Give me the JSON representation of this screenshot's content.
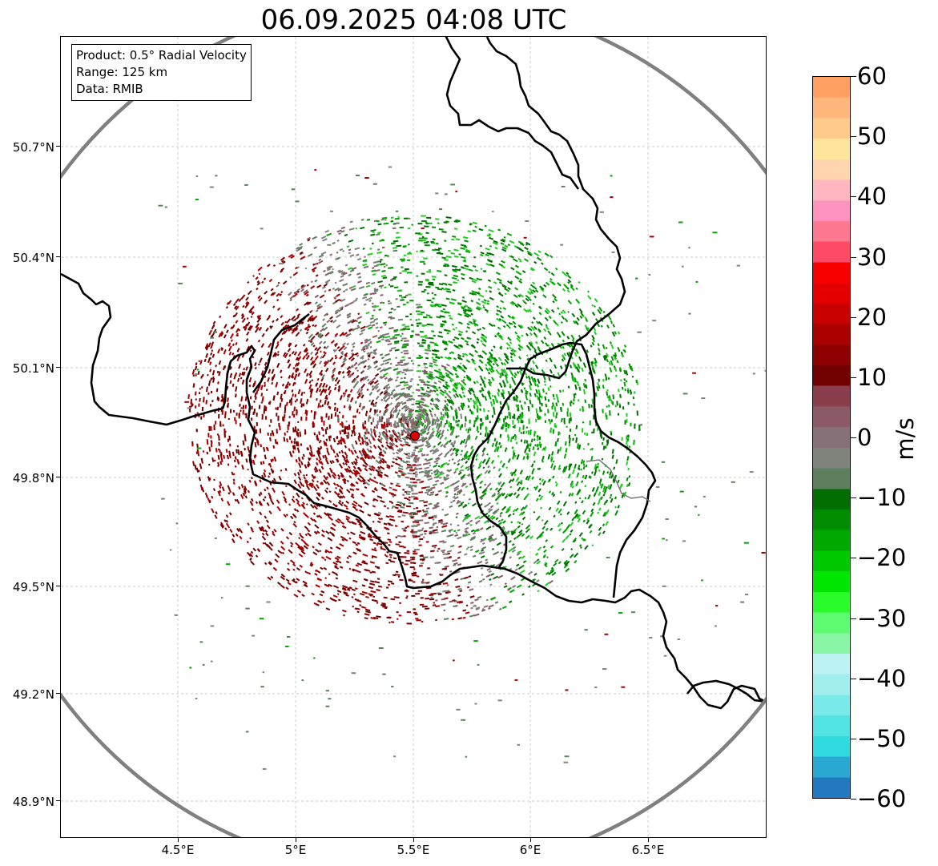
{
  "title": "06.09.2025 04:08 UTC",
  "info": {
    "product": "Product: 0.5° Radial Velocity",
    "range": "Range: 125 km",
    "data_source": "Data: RMIB"
  },
  "lat_labels": [
    "50.7°N",
    "50.4°N",
    "50.1°N",
    "49.8°N",
    "49.5°N",
    "49.2°N",
    "48.9°N"
  ],
  "lon_labels": [
    "4.5°E",
    "5°E",
    "5.5°E",
    "6°E",
    "6.5°E"
  ],
  "colorbar": {
    "unit": "m/s",
    "labels": [
      "60",
      "50",
      "40",
      "30",
      "20",
      "10",
      "0",
      "−10",
      "−20",
      "−30",
      "−40",
      "−50",
      "−60"
    ],
    "colors": [
      "#2378c0",
      "#29a8d2",
      "#30dbe0",
      "#52e4e4",
      "#79e9e9",
      "#a2eeee",
      "#bcf2f2",
      "#8af5a5",
      "#5cfb72",
      "#2afb2a",
      "#00e600",
      "#00c800",
      "#00a800",
      "#008c00",
      "#006d00",
      "#5e7f5e",
      "#7f847d",
      "#867179",
      "#8b5a66",
      "#8a3e4c",
      "#730000",
      "#900000",
      "#aa0000",
      "#c80000",
      "#e40000",
      "#f80000",
      "#ff4a66",
      "#ff7891",
      "#ff93c0",
      "#ffb6c1",
      "#ffd5b0",
      "#ffe49c",
      "#ffca8a",
      "#ffb67b",
      "#ff9f62"
    ]
  },
  "station": {
    "lon": 5.505,
    "lat": 49.914,
    "color": "#e60000"
  },
  "colors": {
    "range_ring": "#808080",
    "border": "#000000",
    "gridline": "#bbbbbb",
    "approaching": [
      "#006d00",
      "#008c00",
      "#00a800",
      "#22cc22"
    ],
    "receding": [
      "#730000",
      "#900000",
      "#aa0000",
      "#7a0000"
    ],
    "near_zero": [
      "#867179",
      "#8b5a66",
      "#7f847d",
      "#5e7f5e"
    ]
  }
}
